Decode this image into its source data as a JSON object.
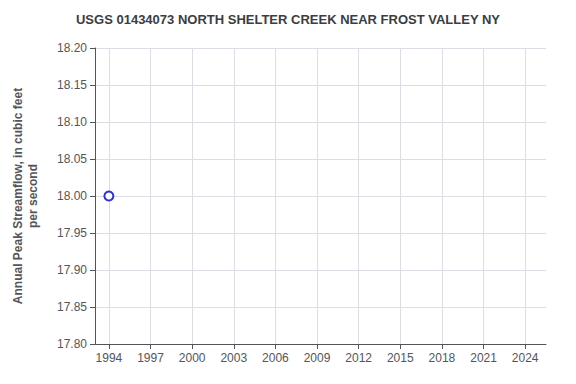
{
  "chart_data": {
    "type": "scatter",
    "title": "USGS 01434073 NORTH SHELTER CREEK NEAR FROST VALLEY NY",
    "ylabel": "Annual Peak Streamflow, in cubic feet\nper second",
    "x": [
      1994
    ],
    "values": [
      18.0
    ],
    "color": "#0000cc",
    "marker": "circle",
    "xlim": [
      1993,
      2025.5
    ],
    "ylim": [
      17.8,
      18.2
    ],
    "xticks": [
      1994,
      1997,
      2000,
      2003,
      2006,
      2009,
      2012,
      2015,
      2018,
      2021,
      2024
    ],
    "yticks": [
      {
        "value": 17.8,
        "label": "17.80"
      },
      {
        "value": 17.85,
        "label": "17.85"
      },
      {
        "value": 17.9,
        "label": "17.90"
      },
      {
        "value": 17.95,
        "label": "17.95"
      },
      {
        "value": 18.0,
        "label": "18.00"
      },
      {
        "value": 18.05,
        "label": "18.05"
      },
      {
        "value": 18.1,
        "label": "18.10"
      },
      {
        "value": 18.15,
        "label": "18.15"
      },
      {
        "value": 18.2,
        "label": "18.20"
      }
    ],
    "grid": true
  }
}
